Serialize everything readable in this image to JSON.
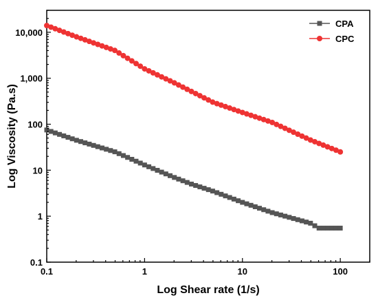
{
  "chart_data": {
    "type": "line",
    "title": "",
    "xlabel": "Log Shear rate (1/s)",
    "ylabel": "Log Viscosity (Pa.s)",
    "xscale": "log",
    "yscale": "log",
    "xlim": [
      0.1,
      200
    ],
    "ylim": [
      0.1,
      30000
    ],
    "xticks": [
      0.1,
      1,
      10,
      100
    ],
    "xtick_labels": [
      "0.1",
      "1",
      "10",
      "100"
    ],
    "yticks": [
      0.1,
      1,
      10,
      100,
      1000,
      10000
    ],
    "ytick_labels": [
      "0.1",
      "1",
      "10",
      "100",
      "1,000",
      "10,000"
    ],
    "grid": false,
    "legend_position": "top-right",
    "series": [
      {
        "name": "CPA",
        "color": "#555555",
        "marker": "square",
        "x": [
          0.1,
          0.2,
          0.5,
          1,
          2,
          3,
          5,
          10,
          20,
          50,
          60,
          100
        ],
        "y": [
          75,
          45,
          25,
          13,
          7,
          5,
          3.5,
          2,
          1.2,
          0.7,
          0.55,
          0.55
        ]
      },
      {
        "name": "CPC",
        "color": "#ee3333",
        "marker": "circle",
        "x": [
          0.1,
          0.2,
          0.5,
          1,
          2,
          5,
          10,
          20,
          50,
          100
        ],
        "y": [
          14000,
          8000,
          4000,
          1600,
          800,
          300,
          180,
          110,
          45,
          25
        ]
      }
    ]
  }
}
